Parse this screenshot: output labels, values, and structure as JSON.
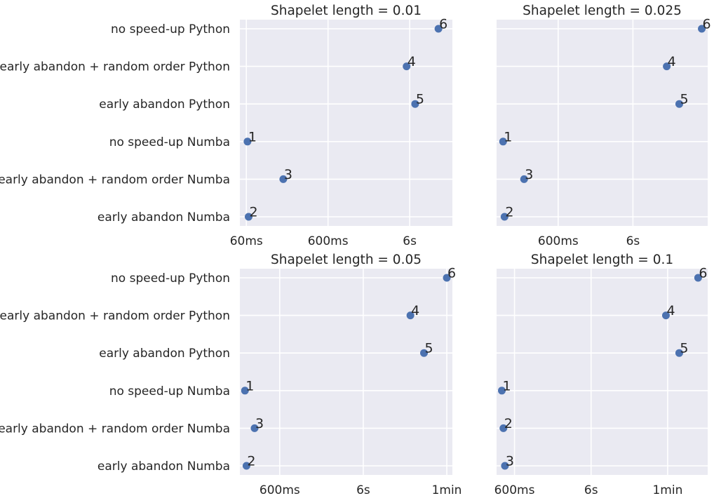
{
  "chart_data": {
    "type": "scatter",
    "category_labels": [
      "no speed-up Python",
      "early abandon + random order Python",
      "early abandon Python",
      "no speed-up Numba",
      "early abandon + random order Numba",
      "early abandon Numba"
    ],
    "x_scale": "log",
    "x_unit": "seconds",
    "grid": true,
    "marker_color": "#4c72b0",
    "background_color": "#eaeaf2",
    "panels": [
      {
        "title": "Shapelet length = 0.01",
        "xlim": [
          0.05,
          20
        ],
        "xticks": [
          {
            "value": 0.06,
            "label": "60ms"
          },
          {
            "value": 0.6,
            "label": "600ms"
          },
          {
            "value": 6,
            "label": "6s"
          }
        ],
        "points": [
          {
            "category": "no speed-up Python",
            "x": 13.5,
            "rank": "6"
          },
          {
            "category": "early abandon + random order Python",
            "x": 5.5,
            "rank": "4"
          },
          {
            "category": "early abandon Python",
            "x": 7.0,
            "rank": "5"
          },
          {
            "category": "no speed-up Numba",
            "x": 0.062,
            "rank": "1"
          },
          {
            "category": "early abandon + random order Numba",
            "x": 0.17,
            "rank": "3"
          },
          {
            "category": "early abandon Numba",
            "x": 0.064,
            "rank": "2"
          }
        ]
      },
      {
        "title": "Shapelet length = 0.025",
        "xlim": [
          0.09,
          60
        ],
        "xticks": [
          {
            "value": 0.6,
            "label": "600ms"
          },
          {
            "value": 6,
            "label": "6s"
          }
        ],
        "points": [
          {
            "category": "no speed-up Python",
            "x": 50,
            "rank": "6"
          },
          {
            "category": "early abandon + random order Python",
            "x": 17,
            "rank": "4"
          },
          {
            "category": "early abandon Python",
            "x": 25,
            "rank": "5"
          },
          {
            "category": "no speed-up Numba",
            "x": 0.11,
            "rank": "1"
          },
          {
            "category": "early abandon + random order Numba",
            "x": 0.21,
            "rank": "3"
          },
          {
            "category": "early abandon Numba",
            "x": 0.115,
            "rank": "2"
          }
        ]
      },
      {
        "title": "Shapelet length = 0.05",
        "xlim": [
          0.2,
          70
        ],
        "xticks": [
          {
            "value": 0.6,
            "label": "600ms"
          },
          {
            "value": 6,
            "label": "6s"
          },
          {
            "value": 60,
            "label": "1min"
          }
        ],
        "points": [
          {
            "category": "no speed-up Python",
            "x": 60,
            "rank": "6"
          },
          {
            "category": "early abandon + random order Python",
            "x": 22,
            "rank": "4"
          },
          {
            "category": "early abandon Python",
            "x": 32,
            "rank": "5"
          },
          {
            "category": "no speed-up Numba",
            "x": 0.23,
            "rank": "1"
          },
          {
            "category": "early abandon + random order Numba",
            "x": 0.3,
            "rank": "3"
          },
          {
            "category": "early abandon Numba",
            "x": 0.24,
            "rank": "2"
          }
        ]
      },
      {
        "title": "Shapelet length = 0.1",
        "xlim": [
          0.35,
          200
        ],
        "xticks": [
          {
            "value": 0.6,
            "label": "600ms"
          },
          {
            "value": 6,
            "label": "6s"
          },
          {
            "value": 60,
            "label": "1min"
          }
        ],
        "points": [
          {
            "category": "no speed-up Python",
            "x": 150,
            "rank": "6"
          },
          {
            "category": "early abandon + random order Python",
            "x": 57,
            "rank": "4"
          },
          {
            "category": "early abandon Python",
            "x": 85,
            "rank": "5"
          },
          {
            "category": "no speed-up Numba",
            "x": 0.41,
            "rank": "1"
          },
          {
            "category": "early abandon + random order Numba",
            "x": 0.43,
            "rank": "2"
          },
          {
            "category": "early abandon Numba",
            "x": 0.45,
            "rank": "3"
          }
        ]
      }
    ]
  }
}
